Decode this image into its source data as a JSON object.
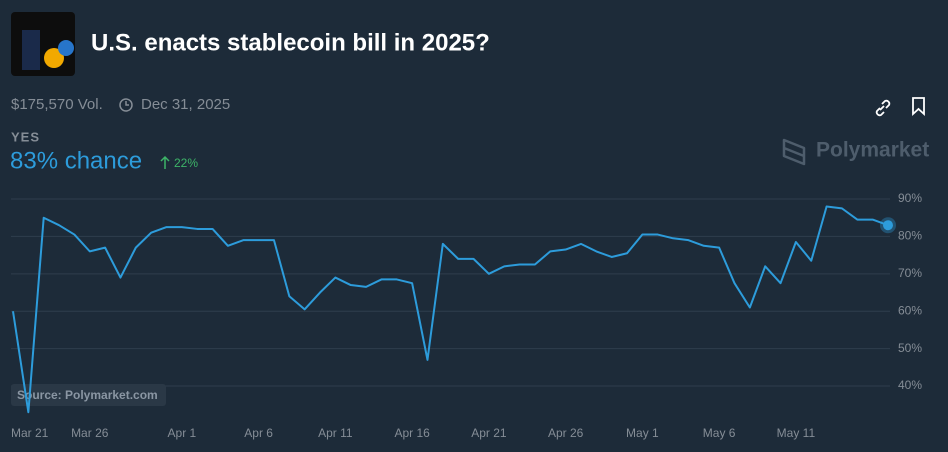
{
  "market": {
    "title": "U.S. enacts stablecoin bill in 2025?",
    "volume": "$175,570 Vol.",
    "end_date": "Dec 31, 2025",
    "outcome": "YES",
    "chance": "83% chance",
    "change": "22%"
  },
  "brand": "Polymarket",
  "chart_data": {
    "type": "line",
    "color": "#2d9cdb",
    "grid": true,
    "annotation": "Source: Polymarket.com",
    "categories": [
      "Mar 21",
      null,
      null,
      null,
      null,
      "Mar 26",
      null,
      null,
      null,
      null,
      null,
      "Apr 1",
      null,
      null,
      null,
      null,
      "Apr 6",
      null,
      null,
      null,
      null,
      "Apr 11",
      null,
      null,
      null,
      null,
      "Apr 16",
      null,
      null,
      null,
      null,
      "Apr 21",
      null,
      null,
      null,
      null,
      "Apr 26",
      null,
      null,
      null,
      null,
      "May 1",
      null,
      null,
      null,
      null,
      "May 6",
      null,
      null,
      null,
      null,
      "May 11",
      null,
      null,
      null,
      null,
      null,
      null
    ],
    "values": [
      60,
      33,
      85,
      83,
      80.5,
      76,
      77,
      69,
      77,
      81,
      82.5,
      82.5,
      82,
      82,
      77.5,
      79,
      79,
      79,
      64,
      60.5,
      65,
      69,
      67,
      66.5,
      68.5,
      68.5,
      67.5,
      47,
      78,
      74,
      74,
      70,
      72,
      72.5,
      72.5,
      76,
      76.5,
      78,
      76,
      74.5,
      75.5,
      80.5,
      80.5,
      79.5,
      79,
      77.5,
      77,
      67.5,
      61,
      72,
      67.5,
      78.5,
      73.5,
      88,
      87.5,
      84.5,
      84.5,
      83
    ],
    "ylim": [
      33,
      93
    ],
    "yticks": [
      {
        "value": 40,
        "label": "40%"
      },
      {
        "value": 50,
        "label": "50%"
      },
      {
        "value": 60,
        "label": "60%"
      },
      {
        "value": 70,
        "label": "70%"
      },
      {
        "value": 80,
        "label": "80%"
      },
      {
        "value": 90,
        "label": "90%"
      }
    ]
  }
}
